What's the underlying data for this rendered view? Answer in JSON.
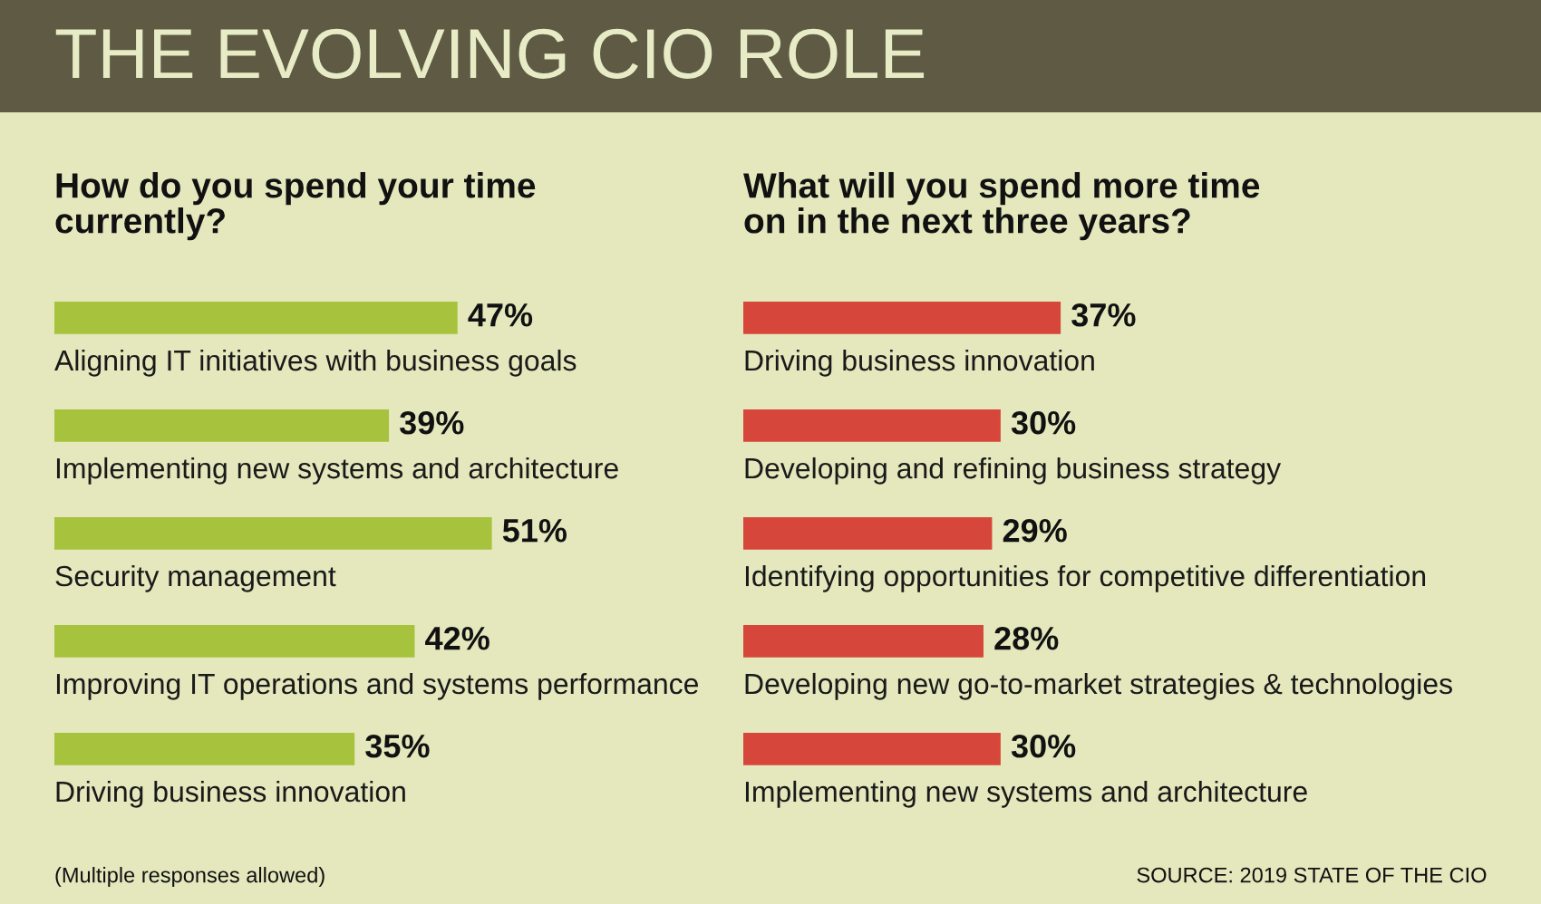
{
  "chart_data": [
    {
      "type": "bar",
      "orientation": "horizontal",
      "title": "How do you spend your time\ncurrently?",
      "categories": [
        "Aligning IT initiatives with business goals",
        "Implementing new systems and architecture",
        "Security management",
        "Improving IT operations and systems performance",
        "Driving business innovation"
      ],
      "values": [
        47,
        39,
        51,
        42,
        35
      ],
      "value_labels": [
        "47%",
        "39%",
        "51%",
        "42%",
        "35%"
      ],
      "color": "#a7c23c",
      "annotations": [
        "THE EVOLVING CIO ROLE",
        "(Multiple responses allowed)"
      ]
    },
    {
      "type": "bar",
      "orientation": "horizontal",
      "title": "What will you spend more time\non in the next three years?",
      "categories": [
        "Driving business innovation",
        "Developing and refining business strategy",
        "Identifying opportunities for competitive differentiation",
        "Developing new go-to-market strategies & technologies",
        "Implementing new systems and architecture"
      ],
      "values": [
        37,
        30,
        29,
        28,
        30
      ],
      "value_labels": [
        "37%",
        "30%",
        "29%",
        "28%",
        "30%"
      ],
      "color": "#d6463a",
      "annotations": [
        "SOURCE: 2019 STATE OF THE CIO"
      ]
    }
  ]
}
